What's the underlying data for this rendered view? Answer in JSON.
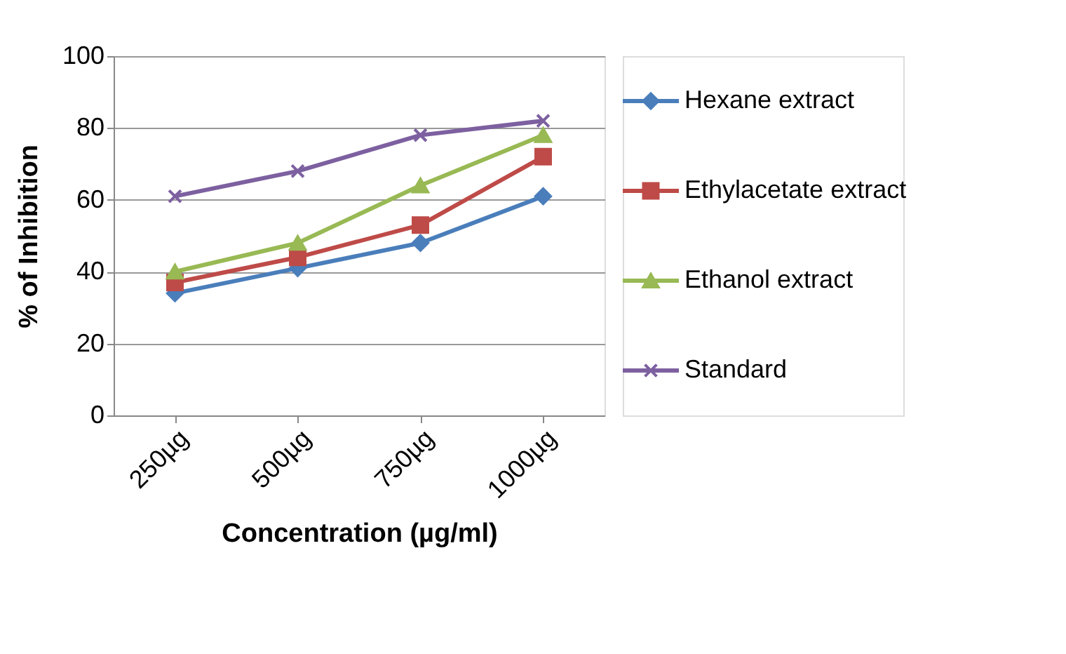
{
  "chart_data": {
    "type": "line",
    "xlabel": "Concentration (µg/ml)",
    "ylabel": "% of Inhibition",
    "categories": [
      "250µg",
      "500µg",
      "750µg",
      "1000µg"
    ],
    "series": [
      {
        "name": "Hexane extract",
        "color": "#4a7ebb",
        "marker": "diamond",
        "values": [
          34,
          41,
          48,
          61
        ]
      },
      {
        "name": "Ethylacetate extract",
        "color": "#be4b48",
        "marker": "square",
        "values": [
          37,
          44,
          53,
          72
        ]
      },
      {
        "name": "Ethanol extract",
        "color": "#98b954",
        "marker": "triangle",
        "values": [
          40,
          48,
          64,
          78
        ]
      },
      {
        "name": "Standard",
        "color": "#7d60a0",
        "marker": "cross",
        "values": [
          61,
          68,
          78,
          82
        ]
      }
    ],
    "ylim": [
      0,
      100
    ],
    "yticks": [
      0,
      20,
      40,
      60,
      80,
      100
    ],
    "grid": "y",
    "legend": "right"
  }
}
